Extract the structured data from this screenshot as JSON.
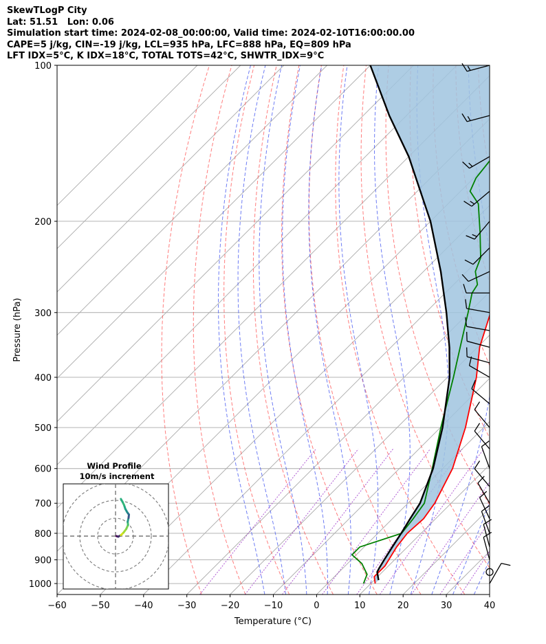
{
  "header": {
    "line1": "SkewTLogP City",
    "line2": "Lat: 51.51   Lon: 0.06",
    "line3": "Simulation start time: 2024-02-08_00:00:00, Valid time: 2024-02-10T16:00:00.00",
    "line4": "CAPE=5 j/kg, CIN=-19 j/kg, LCL=935 hPa, LFC=888 hPa, EQ=809 hPa",
    "line5": "LFT IDX=5°C, K IDX=18°C, TOTAL TOTS=42°C, SHWTR_IDX=9°C"
  },
  "chart_data": {
    "type": "line",
    "chart_kind": "skew-t log-p",
    "xlabel": "Temperature (°C)",
    "ylabel": "Pressure (hPa)",
    "xlim": [
      -60,
      40
    ],
    "ylim": [
      1050,
      100
    ],
    "y_scale": "log",
    "x_ticks": [
      "−60",
      "−50",
      "−40",
      "−30",
      "−20",
      "−10",
      "0",
      "10",
      "20",
      "30",
      "40"
    ],
    "y_ticks": [
      "100",
      "200",
      "300",
      "400",
      "500",
      "600",
      "700",
      "800",
      "900",
      "1000"
    ],
    "grid": true,
    "colors": {
      "temperature": "#ff0000",
      "dewpoint": "#008000",
      "parcel": "#000000",
      "cape_fill": "#a0c4df",
      "dry_adiabat": "#ff5050",
      "moist_adiabat": "#3c50f0",
      "mixing_ratio": "#9b30c8",
      "isotherm": "#aaaaaa"
    },
    "series": [
      {
        "name": "temperature",
        "points": [
          [
            1000,
            11
          ],
          [
            970,
            9.2
          ],
          [
            925,
            9.2
          ],
          [
            850,
            7.5
          ],
          [
            800,
            6.8
          ],
          [
            750,
            7.2
          ],
          [
            700,
            6.2
          ],
          [
            600,
            2.3
          ],
          [
            500,
            -4.2
          ],
          [
            400,
            -13.3
          ],
          [
            350,
            -19.5
          ],
          [
            300,
            -25
          ],
          [
            275,
            -28
          ],
          [
            250,
            -30.5
          ],
          [
            225,
            -32
          ],
          [
            200,
            -33
          ],
          [
            185,
            -35
          ],
          [
            175,
            -37
          ],
          [
            160,
            -40
          ],
          [
            140,
            -44.5
          ],
          [
            120,
            -48.5
          ],
          [
            100,
            -52.5
          ]
        ]
      },
      {
        "name": "dewpoint",
        "points": [
          [
            1000,
            8.3
          ],
          [
            960,
            7
          ],
          [
            915,
            3.3
          ],
          [
            880,
            -1
          ],
          [
            850,
            -1
          ],
          [
            800,
            5.5
          ],
          [
            750,
            4.8
          ],
          [
            700,
            3.8
          ],
          [
            600,
            -2.4
          ],
          [
            500,
            -9.9
          ],
          [
            400,
            -18.6
          ],
          [
            350,
            -24
          ],
          [
            300,
            -30.2
          ],
          [
            275,
            -33.8
          ],
          [
            265,
            -34.5
          ],
          [
            250,
            -38
          ],
          [
            235,
            -40
          ],
          [
            210,
            -46
          ],
          [
            185,
            -53
          ],
          [
            175,
            -57.8
          ],
          [
            165,
            -59.5
          ],
          [
            150,
            -60.5
          ],
          [
            130,
            -62
          ],
          [
            100,
            -67
          ]
        ]
      },
      {
        "name": "parcel",
        "points": [
          [
            985,
            11
          ],
          [
            950,
            8.8
          ],
          [
            935,
            8.4
          ],
          [
            900,
            7.6
          ],
          [
            850,
            6.5
          ],
          [
            800,
            5.4
          ],
          [
            750,
            4.1
          ],
          [
            700,
            2.8
          ],
          [
            600,
            -2.2
          ],
          [
            500,
            -9.5
          ],
          [
            400,
            -19.5
          ],
          [
            350,
            -26.5
          ],
          [
            300,
            -35.2
          ],
          [
            250,
            -46
          ],
          [
            200,
            -60
          ],
          [
            150,
            -80
          ],
          [
            125,
            -94
          ],
          [
            100,
            -110
          ]
        ]
      }
    ],
    "dry_adiabats_C": [
      -30,
      -20,
      -10,
      0,
      10,
      20,
      30,
      40,
      50,
      60,
      70,
      80,
      90,
      100,
      110,
      120,
      130,
      140,
      150,
      160,
      170
    ],
    "moist_adiabats_C": [
      -15,
      -10,
      -5,
      0,
      5,
      10,
      15,
      20,
      25,
      30,
      35
    ],
    "mixing_ratio_lines_gkg": [
      0.4,
      1,
      2,
      4,
      7,
      10,
      16,
      24,
      32
    ],
    "wind_barbs": [
      {
        "p": 100,
        "speed_kt": 15,
        "dir_deg": 255
      },
      {
        "p": 125,
        "speed_kt": 15,
        "dir_deg": 255
      },
      {
        "p": 150,
        "speed_kt": 15,
        "dir_deg": 240
      },
      {
        "p": 175,
        "speed_kt": 15,
        "dir_deg": 230
      },
      {
        "p": 200,
        "speed_kt": 15,
        "dir_deg": 220
      },
      {
        "p": 225,
        "speed_kt": 10,
        "dir_deg": 225
      },
      {
        "p": 250,
        "speed_kt": 10,
        "dir_deg": 245
      },
      {
        "p": 275,
        "speed_kt": 10,
        "dir_deg": 270
      },
      {
        "p": 300,
        "speed_kt": 10,
        "dir_deg": 280
      },
      {
        "p": 325,
        "speed_kt": 10,
        "dir_deg": 280
      },
      {
        "p": 350,
        "speed_kt": 10,
        "dir_deg": 285
      },
      {
        "p": 375,
        "speed_kt": 10,
        "dir_deg": 285
      },
      {
        "p": 400,
        "speed_kt": 10,
        "dir_deg": 300
      },
      {
        "p": 450,
        "speed_kt": 10,
        "dir_deg": 310
      },
      {
        "p": 500,
        "speed_kt": 10,
        "dir_deg": 320
      },
      {
        "p": 550,
        "speed_kt": 10,
        "dir_deg": 320
      },
      {
        "p": 600,
        "speed_kt": 10,
        "dir_deg": 340
      },
      {
        "p": 650,
        "speed_kt": 10,
        "dir_deg": 320
      },
      {
        "p": 700,
        "speed_kt": 10,
        "dir_deg": 330
      },
      {
        "p": 750,
        "speed_kt": 10,
        "dir_deg": 335
      },
      {
        "p": 800,
        "speed_kt": 10,
        "dir_deg": 340
      },
      {
        "p": 850,
        "speed_kt": 10,
        "dir_deg": 345
      },
      {
        "p": 900,
        "speed_kt": 10,
        "dir_deg": 345
      },
      {
        "p": 950,
        "speed_kt": 0,
        "dir_deg": 0
      },
      {
        "p": 1000,
        "speed_kt": 10,
        "dir_deg": 30
      }
    ],
    "inset": {
      "title_line1": "Wind Profile",
      "title_line2": "10m/s increment",
      "rings_ms": [
        10,
        20,
        30
      ],
      "hodograph": [
        [
          0.5,
          0
        ],
        [
          1.5,
          -0.3
        ],
        [
          3,
          0.5
        ],
        [
          4.5,
          2
        ],
        [
          6,
          4
        ],
        [
          7,
          6.2
        ],
        [
          6.8,
          8
        ],
        [
          7.3,
          10.2
        ],
        [
          7.5,
          12
        ],
        [
          6.5,
          13.4
        ],
        [
          5.5,
          15.2
        ],
        [
          4.8,
          17.3
        ],
        [
          4,
          19
        ],
        [
          3,
          20.8
        ]
      ]
    }
  }
}
